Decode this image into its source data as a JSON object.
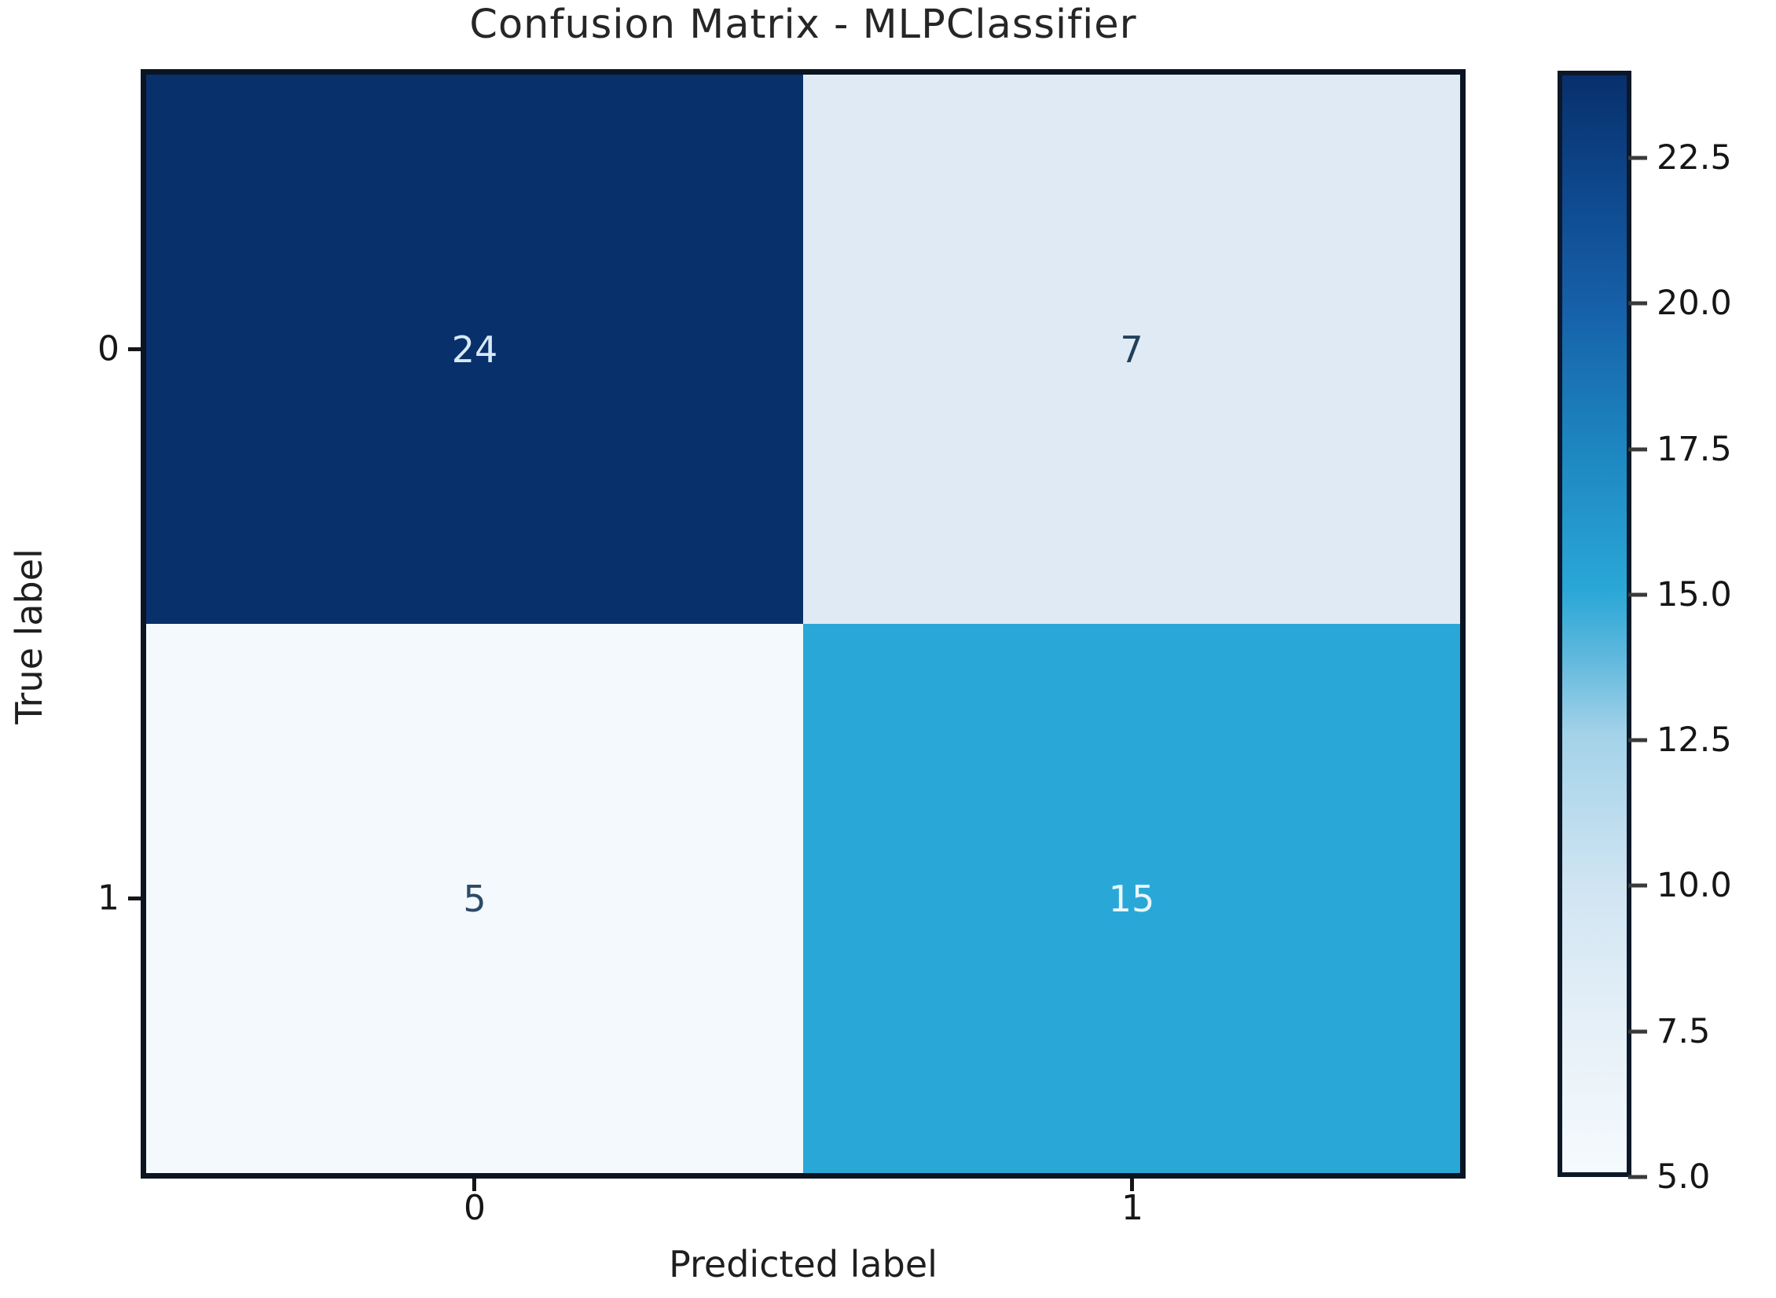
{
  "title": "Confusion Matrix - MLPClassifier",
  "chart_data": {
    "type": "heatmap",
    "title": "Confusion Matrix - MLPClassifier",
    "xlabel": "Predicted label",
    "ylabel": "True label",
    "x_tick_labels": [
      "0",
      "1"
    ],
    "y_tick_labels": [
      "0",
      "1"
    ],
    "matrix": [
      [
        24,
        7
      ],
      [
        5,
        15
      ]
    ],
    "vmin": 5.0,
    "vmax": 24.0,
    "colormap": "Blues",
    "grid": false,
    "legend_position": "right-colorbar",
    "cell_colors": [
      [
        "#08306b",
        "#dfeaf4"
      ],
      [
        "#f4f9fd",
        "#29a8d8"
      ]
    ],
    "cell_text_colors": [
      [
        "#d8e9f6",
        "#21405b"
      ],
      [
        "#2c4b66",
        "#eaf7fd"
      ]
    ],
    "colorbar": {
      "min": 5.0,
      "max": 24.0,
      "ticks": [
        22.5,
        20.0,
        17.5,
        15.0,
        12.5,
        10.0,
        7.5,
        5.0
      ],
      "tick_labels": [
        "22.5",
        "20.0",
        "17.5",
        "15.0",
        "12.5",
        "10.0",
        "7.5",
        "5.0"
      ],
      "gradient_stops": [
        {
          "pos": 0.0,
          "color": "#f5fafd"
        },
        {
          "pos": 0.13,
          "color": "#e6f0f8"
        },
        {
          "pos": 0.26,
          "color": "#d0e5f2"
        },
        {
          "pos": 0.4,
          "color": "#a3d2e9"
        },
        {
          "pos": 0.47,
          "color": "#5fb8dd"
        },
        {
          "pos": 0.53,
          "color": "#2aa7d7"
        },
        {
          "pos": 0.66,
          "color": "#1d86c0"
        },
        {
          "pos": 0.79,
          "color": "#1660a9"
        },
        {
          "pos": 0.92,
          "color": "#0c4286"
        },
        {
          "pos": 1.0,
          "color": "#08306b"
        }
      ]
    }
  }
}
